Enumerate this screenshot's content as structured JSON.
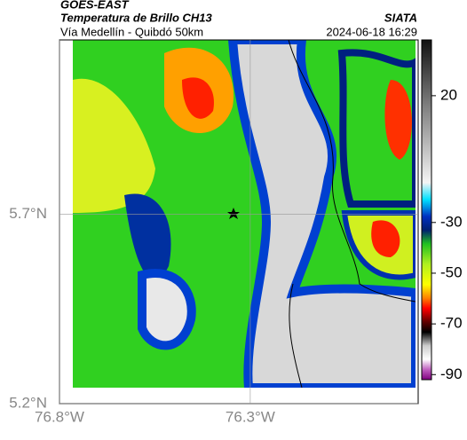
{
  "header": {
    "title": "GOES-EAST",
    "subtitle": "Temperatura de Brillo CH13",
    "route": "Vía Medellín - Quibdó 50km",
    "source": "SIATA",
    "datetime": "2024-06-18 16:29"
  },
  "map": {
    "xlim": [
      -76.8,
      -75.86
    ],
    "ylim": [
      5.2,
      6.16
    ],
    "xticks": [
      {
        "value": -76.8,
        "label": "76.8°W"
      },
      {
        "value": -76.3,
        "label": "76.3°W"
      }
    ],
    "yticks": [
      {
        "value": 5.2,
        "label": "5.2°N"
      },
      {
        "value": 5.7,
        "label": "5.7°N"
      }
    ]
  },
  "colorbar": {
    "lim": [
      -92,
      42
    ],
    "ticks": [
      20,
      -30,
      -50,
      -70,
      -90
    ]
  }
}
